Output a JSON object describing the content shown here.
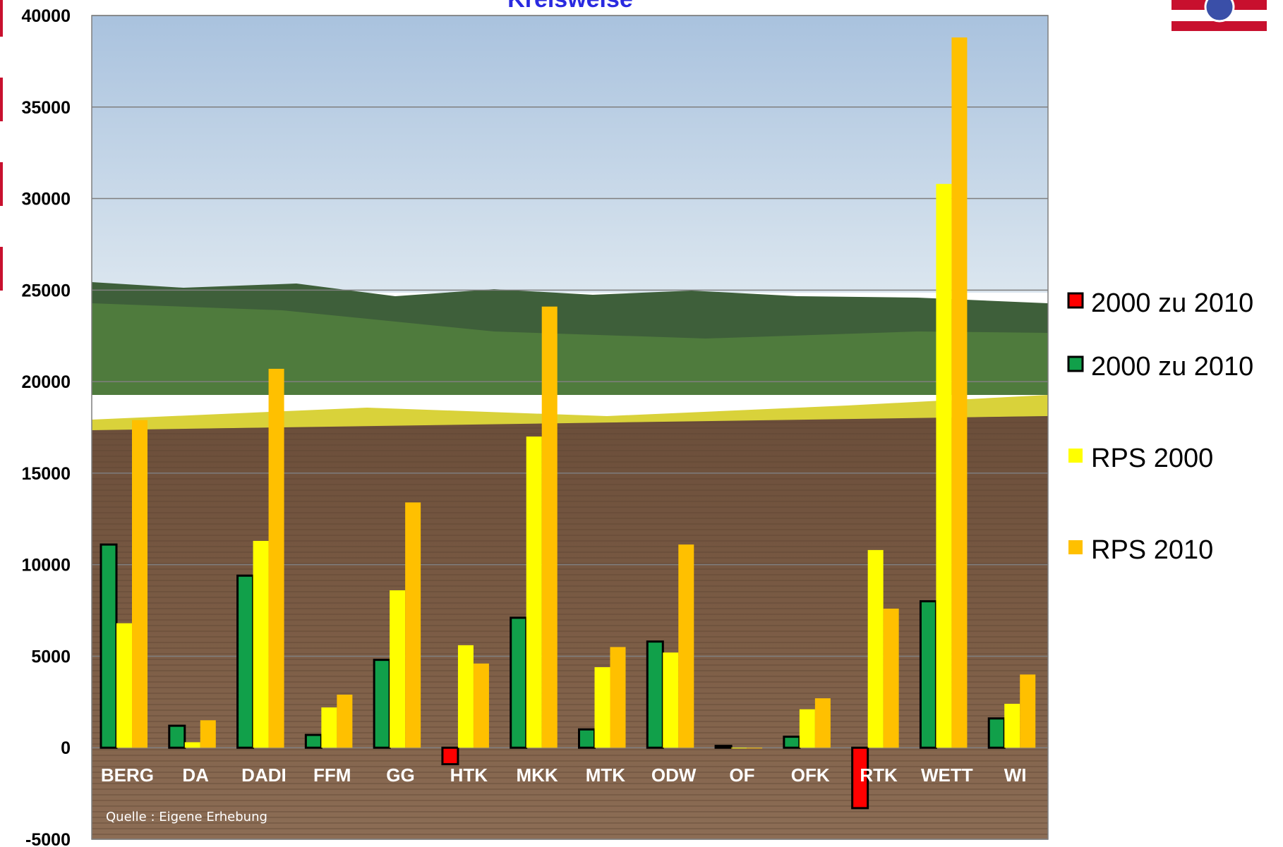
{
  "chart_data": {
    "type": "bar",
    "title": "Kreisweise",
    "source_note": "Quelle : Eigene Erhebung",
    "categories": [
      "BERG",
      "DA",
      "DADI",
      "FFM",
      "GG",
      "HTK",
      "MKK",
      "MTK",
      "ODW",
      "OF",
      "OFK",
      "RTK",
      "WETT",
      "WI"
    ],
    "ylim": [
      -5000,
      40000
    ],
    "yticks": [
      "40000",
      "35000",
      "30000",
      "25000",
      "20000",
      "15000",
      "10000",
      "5000",
      "0",
      "-5000"
    ],
    "grid": true,
    "legend_position": "right",
    "series": [
      {
        "name": "2000 zu 2010",
        "role": "change",
        "positive_color": "#11a04a",
        "negative_color": "#ff0000",
        "values": [
          11100,
          1200,
          9400,
          700,
          4800,
          -900,
          7100,
          1000,
          5800,
          100,
          600,
          -3300,
          8000,
          1600
        ]
      },
      {
        "name": "RPS 2000",
        "color": "#ffff00",
        "values": [
          6800,
          300,
          11300,
          2200,
          8600,
          5600,
          17000,
          4400,
          5200,
          0,
          2100,
          10800,
          30800,
          2400
        ]
      },
      {
        "name": "RPS 2010",
        "color": "#ffc000",
        "values": [
          17900,
          1500,
          20700,
          2900,
          13400,
          4600,
          24100,
          5500,
          11100,
          0,
          2700,
          7600,
          38800,
          4000
        ]
      }
    ],
    "legend": [
      {
        "label": "2000 zu 2010",
        "color": "#ff0000",
        "bordered": true
      },
      {
        "label": "2000 zu 2010",
        "color": "#11a04a",
        "bordered": true
      },
      {
        "label": "RPS 2000",
        "color": "#ffff00",
        "bordered": false
      },
      {
        "label": "RPS 2010",
        "color": "#ffc000",
        "bordered": false
      }
    ]
  }
}
